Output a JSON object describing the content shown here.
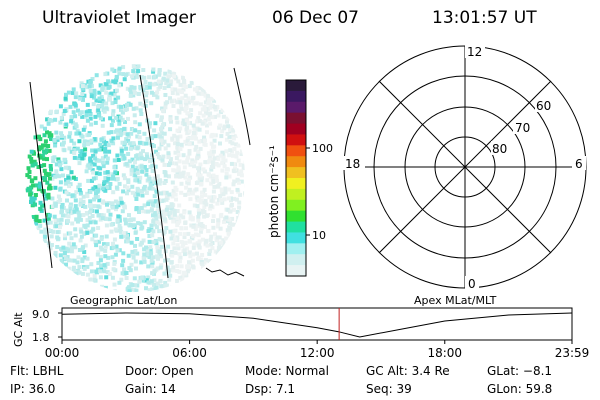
{
  "header": {
    "instrument": "Ultraviolet Imager",
    "date": "06 Dec 07",
    "time": "13:01:57 UT"
  },
  "colorbar": {
    "unit_label": "photon cm⁻²s⁻¹",
    "ticks": [
      "100",
      "10"
    ],
    "colors": [
      "#2a1a3a",
      "#3a1860",
      "#5a1a6a",
      "#7a1030",
      "#a00020",
      "#d01010",
      "#f05010",
      "#f08a10",
      "#f0c020",
      "#f0f020",
      "#c0f020",
      "#80f020",
      "#30e030",
      "#20e0a0",
      "#40e0e0",
      "#a0f0f0",
      "#d0f0f0",
      "#e8f4f4"
    ]
  },
  "polar": {
    "labels_mlt": [
      "12",
      "18",
      "6",
      "0"
    ],
    "labels_mlat": [
      "60",
      "70",
      "80"
    ]
  },
  "timeline": {
    "y_axis_label": "GC Alt",
    "y_ticks": [
      "9.0",
      "1.8"
    ],
    "x_ticks": [
      "00:00",
      "06:00",
      "12:00",
      "18:00",
      "23:59"
    ],
    "left_label": "Geographic Lat/Lon",
    "right_label": "Apex MLat/MLT"
  },
  "info": {
    "filter": "Flt: LBHL",
    "ip": "IP: 36.0",
    "door": "Door: Open",
    "gain": "Gain: 14",
    "mode": "Mode: Normal",
    "dsp": "Dsp:    7.1",
    "gc_alt": "GC Alt: 3.4 Re",
    "seq": "Seq: 39",
    "glat": "GLat:  −8.1",
    "glon": "GLon:  59.8"
  },
  "chart_data": [
    {
      "type": "heatmap",
      "title": "Ultraviolet Imager",
      "colorbar_label": "photon cm⁻²s⁻¹",
      "colorbar_ticks": [
        100,
        10
      ],
      "scale": "log",
      "grid": "meridian lines (Geographic Lat/Lon)"
    },
    {
      "type": "line",
      "ylabel": "GC Alt",
      "y_ticks": [
        9.0,
        1.8
      ],
      "x_ticks": [
        "00:00",
        "06:00",
        "12:00",
        "18:00",
        "23:59"
      ],
      "x": [
        "00:00",
        "03:00",
        "06:00",
        "09:00",
        "12:00",
        "13:00",
        "14:00",
        "16:00",
        "18:00",
        "21:00",
        "23:59"
      ],
      "series": [
        {
          "values": [
            8.6,
            9.0,
            8.8,
            7.4,
            4.6,
            3.4,
            1.8,
            4.2,
            6.6,
            8.4,
            9.0
          ]
        }
      ],
      "current_time": "13:01:57"
    }
  ]
}
